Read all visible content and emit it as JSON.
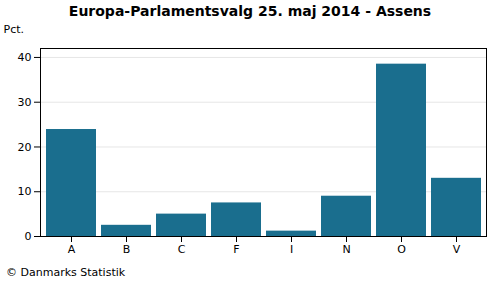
{
  "chart_data": {
    "type": "bar",
    "title": "Europa-Parlamentsvalg 25. maj 2014 - Assens",
    "ylabel": "Pct.",
    "caption": "© Danmarks Statistik",
    "categories": [
      "A",
      "B",
      "C",
      "F",
      "I",
      "N",
      "O",
      "V"
    ],
    "values": [
      23.9,
      2.5,
      5.0,
      7.5,
      1.2,
      9.0,
      38.5,
      13.0
    ],
    "color": "#1a6e8e",
    "ylim": [
      0,
      42
    ],
    "yticks": [
      0,
      10,
      20,
      30,
      40
    ],
    "grid": true
  }
}
